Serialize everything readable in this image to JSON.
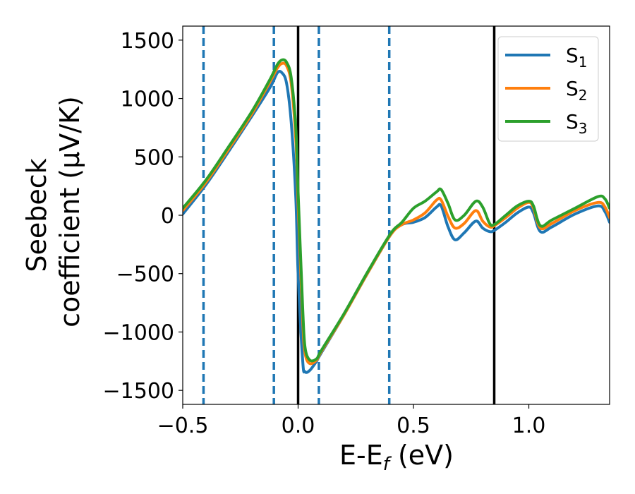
{
  "chart_data": {
    "type": "line",
    "xlabel": "E-E",
    "xlabel_sub": "f",
    "xlabel_unit": " (eV)",
    "ylabel_line1": "Seebeck",
    "ylabel_line2": "coefficient  (μV/K)",
    "xlim": [
      -0.5,
      1.35
    ],
    "ylim": [
      -1620,
      1620
    ],
    "xticks": [
      -0.5,
      0.0,
      0.5,
      1.0
    ],
    "xtick_labels": [
      "−0.5",
      "0.0",
      "0.5",
      "1.0"
    ],
    "yticks": [
      -1500,
      -1000,
      -500,
      0,
      500,
      1000,
      1500
    ],
    "ytick_labels": [
      "−1500",
      "−1000",
      "−500",
      "0",
      "500",
      "1000",
      "1500"
    ],
    "legend_position": "top-right",
    "vlines_dashed": {
      "color": "#1f77b4",
      "x": [
        -0.41,
        -0.105,
        0.09,
        0.395
      ]
    },
    "vlines_solid": {
      "color": "#000000",
      "x": [
        0.0,
        0.85
      ]
    },
    "series": [
      {
        "name": "S",
        "sub": "1",
        "color": "#1f77b4",
        "x": [
          -0.5,
          -0.4,
          -0.3,
          -0.2,
          -0.12,
          -0.09,
          -0.07,
          -0.05,
          -0.03,
          -0.01,
          0.0,
          0.02,
          0.03,
          0.05,
          0.08,
          0.1,
          0.2,
          0.3,
          0.4,
          0.45,
          0.5,
          0.55,
          0.6,
          0.62,
          0.65,
          0.68,
          0.72,
          0.77,
          0.8,
          0.83,
          0.85,
          0.9,
          0.95,
          1.0,
          1.02,
          1.05,
          1.1,
          1.2,
          1.3,
          1.33,
          1.35
        ],
        "y": [
          10,
          260,
          550,
          850,
          1100,
          1220,
          1220,
          1130,
          800,
          150,
          -500,
          -1250,
          -1340,
          -1330,
          -1250,
          -1180,
          -850,
          -500,
          -170,
          -80,
          -60,
          -20,
          70,
          80,
          -100,
          -210,
          -150,
          -50,
          -110,
          -140,
          -130,
          -60,
          20,
          70,
          20,
          -140,
          -100,
          10,
          80,
          30,
          -60
        ]
      },
      {
        "name": "S",
        "sub": "2",
        "color": "#ff7f0e",
        "x": [
          -0.5,
          -0.4,
          -0.3,
          -0.2,
          -0.12,
          -0.09,
          -0.07,
          -0.05,
          -0.03,
          -0.01,
          0.0,
          0.02,
          0.03,
          0.05,
          0.08,
          0.1,
          0.2,
          0.3,
          0.4,
          0.45,
          0.5,
          0.55,
          0.6,
          0.62,
          0.65,
          0.68,
          0.72,
          0.77,
          0.8,
          0.83,
          0.85,
          0.9,
          0.95,
          1.0,
          1.02,
          1.05,
          1.1,
          1.2,
          1.3,
          1.33,
          1.35
        ],
        "y": [
          40,
          280,
          570,
          870,
          1150,
          1260,
          1300,
          1280,
          1130,
          650,
          100,
          -900,
          -1180,
          -1270,
          -1240,
          -1170,
          -850,
          -500,
          -170,
          -80,
          -40,
          20,
          130,
          130,
          -10,
          -110,
          -70,
          40,
          -50,
          -100,
          -90,
          -20,
          60,
          110,
          60,
          -110,
          -70,
          40,
          110,
          70,
          -20
        ]
      },
      {
        "name": "S",
        "sub": "3",
        "color": "#2ca02c",
        "x": [
          -0.5,
          -0.4,
          -0.3,
          -0.2,
          -0.12,
          -0.09,
          -0.07,
          -0.05,
          -0.03,
          -0.01,
          0.0,
          0.02,
          0.03,
          0.05,
          0.08,
          0.1,
          0.2,
          0.3,
          0.4,
          0.45,
          0.5,
          0.55,
          0.6,
          0.62,
          0.65,
          0.68,
          0.72,
          0.77,
          0.8,
          0.83,
          0.85,
          0.9,
          0.95,
          1.0,
          1.02,
          1.05,
          1.1,
          1.2,
          1.3,
          1.33,
          1.35
        ],
        "y": [
          60,
          300,
          590,
          890,
          1170,
          1290,
          1330,
          1310,
          1180,
          750,
          200,
          -800,
          -1130,
          -1240,
          -1230,
          -1160,
          -840,
          -490,
          -160,
          -60,
          60,
          120,
          200,
          220,
          100,
          -40,
          0,
          120,
          70,
          -70,
          -80,
          0,
          80,
          120,
          80,
          -90,
          -40,
          60,
          160,
          140,
          60
        ]
      }
    ]
  }
}
